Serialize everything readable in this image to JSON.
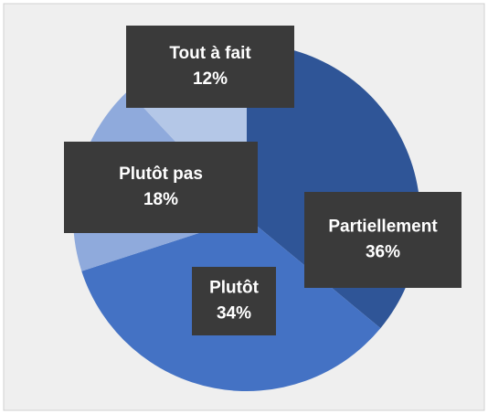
{
  "chart_data": {
    "type": "pie",
    "categories": [
      "Partiellement",
      "Plutôt",
      "Plutôt pas",
      "Tout à fait"
    ],
    "values": [
      36,
      34,
      18,
      12
    ],
    "value_labels": [
      "36%",
      "34%",
      "18%",
      "12%"
    ],
    "colors": [
      "#2f5597",
      "#4472c4",
      "#8faadc",
      "#b4c7e7"
    ]
  }
}
